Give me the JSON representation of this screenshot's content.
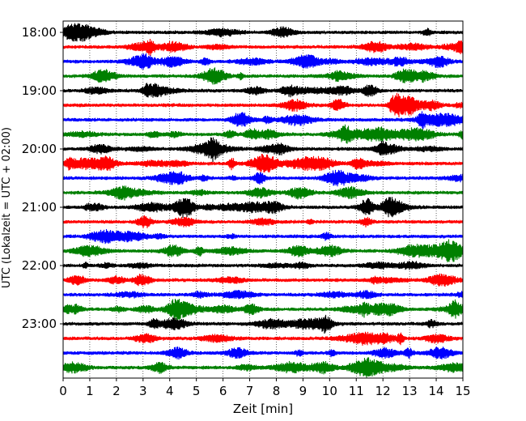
{
  "chart_data": {
    "type": "line",
    "chart_kind": "seismogram helicorder",
    "title": "",
    "xlabel": "Zeit  [min]",
    "ylabel": "UTC (Lokalzeit = UTC + 02:00)",
    "xlim": [
      0,
      15
    ],
    "x_ticks": [
      "0",
      "1",
      "2",
      "3",
      "4",
      "5",
      "6",
      "7",
      "8",
      "9",
      "10",
      "11",
      "12",
      "13",
      "14",
      "15"
    ],
    "y_tick_labels": [
      "18:00",
      "19:00",
      "20:00",
      "21:00",
      "22:00",
      "23:00"
    ],
    "trace_start_times": [
      "18:00",
      "18:15",
      "18:30",
      "18:45",
      "19:00",
      "19:15",
      "19:30",
      "19:45",
      "20:00",
      "20:15",
      "20:30",
      "20:45",
      "21:00",
      "21:15",
      "21:30",
      "21:45",
      "22:00",
      "22:15",
      "22:30",
      "22:45",
      "23:00",
      "23:15",
      "23:30",
      "23:45"
    ],
    "trace_minutes": 15,
    "colors": [
      "#000000",
      "#ff0000",
      "#0000ff",
      "#008000"
    ],
    "grid": {
      "x": true,
      "style": "dotted"
    },
    "legend": "none"
  }
}
